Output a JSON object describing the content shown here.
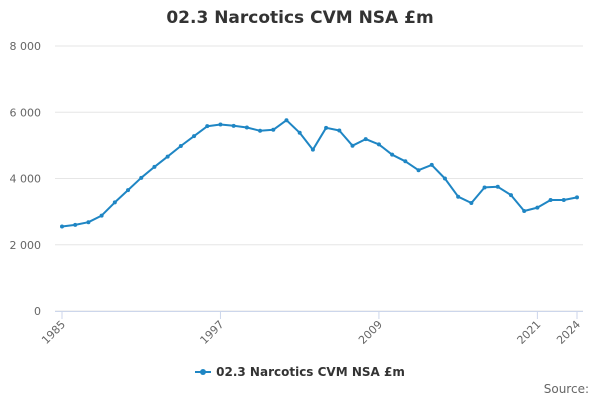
{
  "title": "02.3 Narcotics CVM NSA £m",
  "source_label": "Source:",
  "colors": {
    "series": "#1f86c4",
    "grid": "#e6e6e6",
    "axis": "#ccd6eb",
    "text": "#666666"
  },
  "chart_data": {
    "type": "line",
    "title": "02.3 Narcotics CVM NSA £m",
    "xlabel": "",
    "ylabel": "",
    "xlim": [
      1985,
      2024
    ],
    "ylim": [
      0,
      8000
    ],
    "x_tick_values": [
      1985,
      1997,
      2009,
      2021,
      2024
    ],
    "x_tick_labels": [
      "1985",
      "1997",
      "2009",
      "2021",
      "2024"
    ],
    "y_tick_values": [
      0,
      2000,
      4000,
      6000,
      8000
    ],
    "y_tick_labels": [
      "0",
      "2 000",
      "4 000",
      "6 000",
      "8 000"
    ],
    "grid": true,
    "legend": "bottom-center",
    "series": [
      {
        "name": "02.3 Narcotics CVM NSA £m",
        "x": [
          1985,
          1986,
          1987,
          1988,
          1989,
          1990,
          1991,
          1992,
          1993,
          1994,
          1995,
          1996,
          1997,
          1998,
          1999,
          2000,
          2001,
          2002,
          2003,
          2004,
          2005,
          2006,
          2007,
          2008,
          2009,
          2010,
          2011,
          2012,
          2013,
          2014,
          2015,
          2016,
          2017,
          2018,
          2019,
          2020,
          2021,
          2022,
          2023,
          2024
        ],
        "values": [
          2550,
          2600,
          2680,
          2880,
          3280,
          3650,
          4020,
          4350,
          4660,
          4980,
          5280,
          5580,
          5630,
          5590,
          5540,
          5440,
          5470,
          5760,
          5380,
          4870,
          5530,
          5450,
          4990,
          5190,
          5030,
          4720,
          4520,
          4250,
          4410,
          4000,
          3450,
          3260,
          3730,
          3750,
          3500,
          3020,
          3120,
          3350,
          3350,
          3430
        ]
      }
    ]
  }
}
